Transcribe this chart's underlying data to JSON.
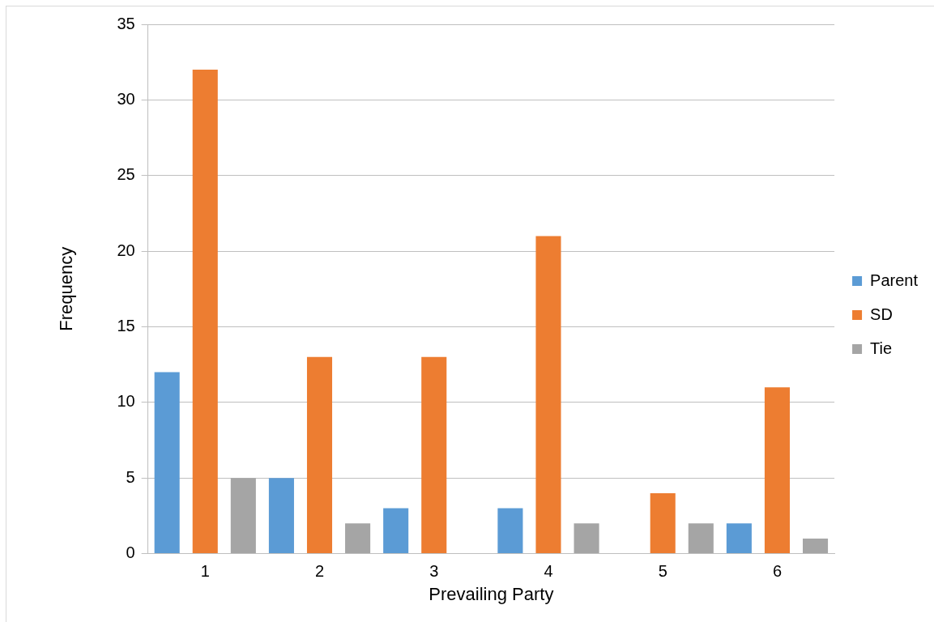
{
  "chart_data": {
    "type": "bar",
    "xlabel": "Prevailing Party",
    "ylabel": "Frequency",
    "categories": [
      "1",
      "2",
      "3",
      "4",
      "5",
      "6"
    ],
    "series": [
      {
        "name": "Parent",
        "color": "#5b9bd5",
        "values": [
          12,
          5,
          3,
          3,
          0,
          2
        ]
      },
      {
        "name": "SD",
        "color": "#ed7d31",
        "values": [
          32,
          13,
          13,
          21,
          4,
          11
        ]
      },
      {
        "name": "Tie",
        "color": "#a5a5a5",
        "values": [
          5,
          2,
          0,
          2,
          2,
          1
        ]
      }
    ],
    "ylim": [
      0,
      35
    ],
    "yticks": [
      0,
      5,
      10,
      15,
      20,
      25,
      30,
      35
    ],
    "grid": "y",
    "legend": "right"
  }
}
